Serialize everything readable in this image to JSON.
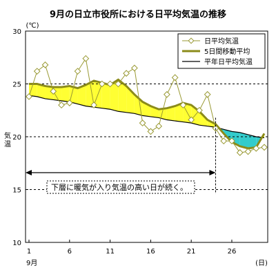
{
  "chart_data": {
    "type": "line",
    "title": "9月の日立市役所における日平均気温の推移",
    "yunit": "(℃)",
    "ylabel": "気温",
    "xunit": "(日)",
    "xmonth": "9月",
    "ylim": [
      10,
      30
    ],
    "yticks": [
      10,
      15,
      20,
      25,
      30
    ],
    "xlim": [
      1,
      30
    ],
    "xticks": [
      1,
      6,
      11,
      16,
      21,
      26
    ],
    "grid": "dashed horizontal at 15, 20, 25",
    "legend_position": "top-right",
    "x": [
      1,
      2,
      3,
      4,
      5,
      6,
      7,
      8,
      9,
      10,
      11,
      12,
      13,
      14,
      15,
      16,
      17,
      18,
      19,
      20,
      21,
      22,
      23,
      24,
      25,
      26,
      27,
      28,
      29,
      30
    ],
    "series": [
      {
        "name": "日平均気温",
        "style": "thin olive line with white diamond markers",
        "color": "#999933",
        "values": [
          23.8,
          26.2,
          26.8,
          24.3,
          23.0,
          23.2,
          26.2,
          27.4,
          23.0,
          25.0,
          25.0,
          25.0,
          26.0,
          26.5,
          21.3,
          20.5,
          21.0,
          24.0,
          25.6,
          23.0,
          21.6,
          22.5,
          24.0,
          20.8,
          19.6,
          19.6,
          18.5,
          18.6,
          18.9,
          19.0
        ]
      },
      {
        "name": "5日間移動平均",
        "style": "thick olive line",
        "color": "#8B8B1A",
        "values": [
          25.0,
          25.0,
          24.8,
          24.7,
          24.7,
          24.8,
          24.6,
          24.9,
          25.3,
          25.1,
          24.9,
          25.4,
          24.8,
          24.0,
          23.3,
          22.9,
          22.6,
          22.7,
          22.9,
          23.2,
          23.0,
          22.4,
          21.6,
          21.2,
          20.3,
          19.5,
          19.1,
          18.9,
          19.0,
          20.3
        ]
      },
      {
        "name": "平年日平均気温",
        "style": "thin black line",
        "color": "#000000",
        "values": [
          23.9,
          23.8,
          23.6,
          23.5,
          23.4,
          23.3,
          23.1,
          22.9,
          22.8,
          22.7,
          22.6,
          22.4,
          22.3,
          22.2,
          22.0,
          21.9,
          21.8,
          21.6,
          21.5,
          21.4,
          21.3,
          21.1,
          21.0,
          20.9,
          20.7,
          20.5,
          20.4,
          20.2,
          20.0,
          19.9
        ]
      }
    ],
    "fill_above_normal_color": "#FFFF33",
    "fill_below_normal_color": "#33CCCC",
    "annotation": {
      "text": "下層に暖気が入り気温の高い日が続く。",
      "from_day": 1,
      "to_day": 24,
      "at_value": 16.6,
      "marker_day": 24
    }
  }
}
